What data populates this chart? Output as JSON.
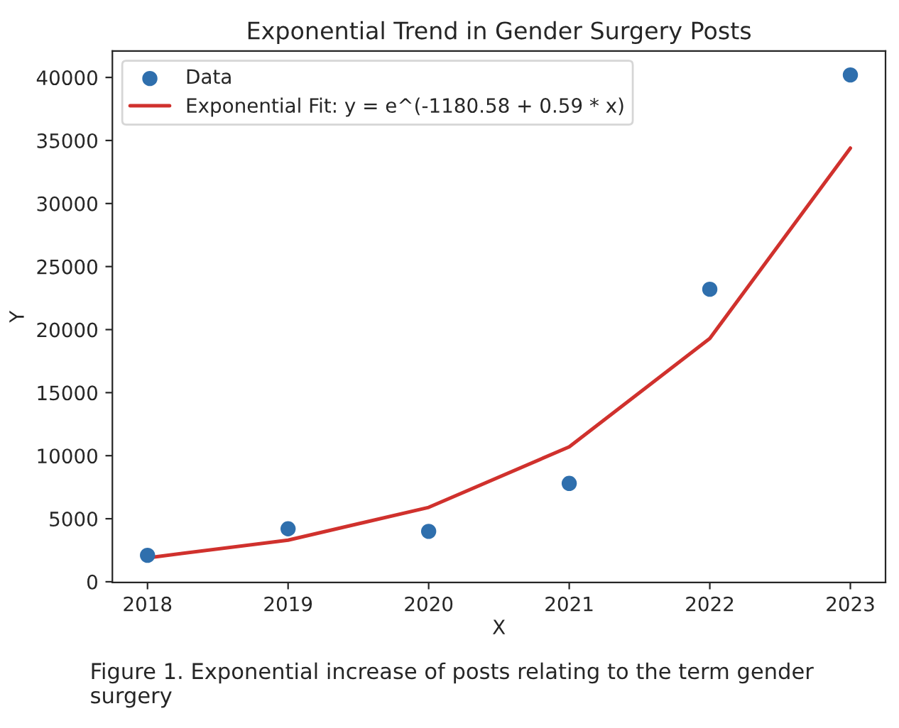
{
  "chart_data": {
    "type": "scatter",
    "title": "Exponential Trend in Gender Surgery Posts",
    "xlabel": "X",
    "ylabel": "Y",
    "x": [
      2018,
      2019,
      2020,
      2021,
      2022,
      2023
    ],
    "series": [
      {
        "name": "Data",
        "color": "#2f6fad",
        "values": [
          2100,
          4200,
          4000,
          7800,
          23200,
          40200
        ]
      },
      {
        "name": "Exponential Fit: y = e^(-1180.58 + 0.59 * x)",
        "type": "line",
        "color": "#d0312d",
        "values": [
          1900,
          3300,
          5900,
          10700,
          19300,
          34400
        ]
      }
    ],
    "xlim": [
      2017.75,
      2023.25
    ],
    "xticks": [
      2018,
      2019,
      2020,
      2021,
      2022,
      2023
    ],
    "ylim": [
      -50,
      42100
    ],
    "yticks": [
      0,
      5000,
      10000,
      15000,
      20000,
      25000,
      30000,
      35000,
      40000
    ],
    "legend": "top left",
    "grid": false,
    "annotations": [
      "Figure 1. Exponential increase of posts relating to the term gender surgery"
    ]
  }
}
